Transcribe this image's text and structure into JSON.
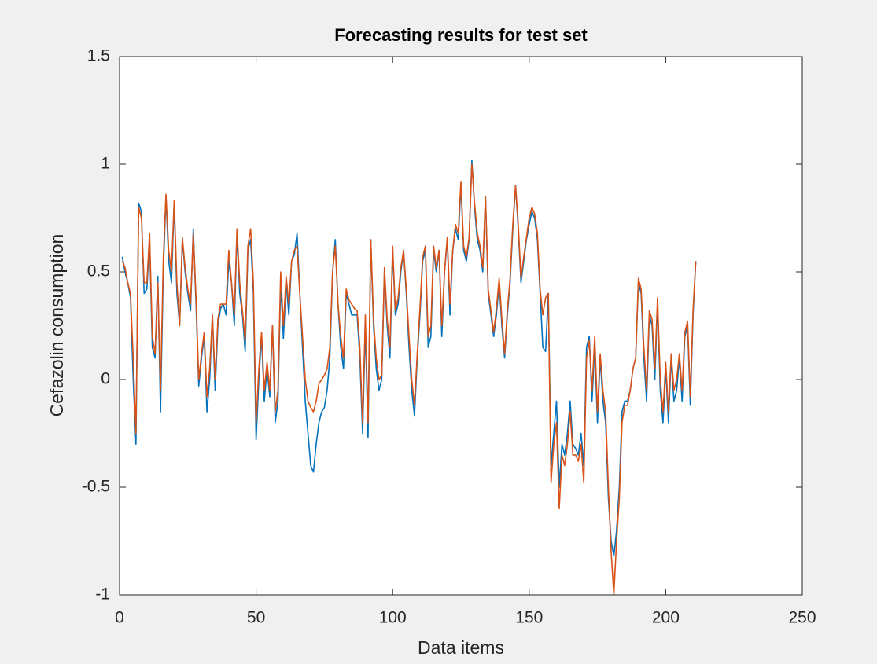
{
  "chart_data": {
    "type": "line",
    "title": "Forecasting results for test set",
    "x_label": "Data items",
    "y_label": "Cefazolin consumption",
    "x": [
      1,
      2,
      3,
      4,
      5,
      6,
      7,
      8,
      9,
      10,
      11,
      12,
      13,
      14,
      15,
      16,
      17,
      18,
      19,
      20,
      21,
      22,
      23,
      24,
      25,
      26,
      27,
      28,
      29,
      30,
      31,
      32,
      33,
      34,
      35,
      36,
      37,
      38,
      39,
      40,
      41,
      42,
      43,
      44,
      45,
      46,
      47,
      48,
      49,
      50,
      51,
      52,
      53,
      54,
      55,
      56,
      57,
      58,
      59,
      60,
      61,
      62,
      63,
      64,
      65,
      66,
      67,
      68,
      69,
      70,
      71,
      72,
      73,
      74,
      75,
      76,
      77,
      78,
      79,
      80,
      81,
      82,
      83,
      84,
      85,
      86,
      87,
      88,
      89,
      90,
      91,
      92,
      93,
      94,
      95,
      96,
      97,
      98,
      99,
      100,
      101,
      102,
      103,
      104,
      105,
      106,
      107,
      108,
      109,
      110,
      111,
      112,
      113,
      114,
      115,
      116,
      117,
      118,
      119,
      120,
      121,
      122,
      123,
      124,
      125,
      126,
      127,
      128,
      129,
      130,
      131,
      132,
      133,
      134,
      135,
      136,
      137,
      138,
      139,
      140,
      141,
      142,
      143,
      144,
      145,
      146,
      147,
      148,
      149,
      150,
      151,
      152,
      153,
      154,
      155,
      156,
      157,
      158,
      159,
      160,
      161,
      162,
      163,
      164,
      165,
      166,
      167,
      168,
      169,
      170,
      171,
      172,
      173,
      174,
      175,
      176,
      177,
      178,
      179,
      180,
      181,
      182,
      183,
      184,
      185,
      186,
      187,
      188,
      189,
      190,
      191,
      192,
      193,
      194,
      195,
      196,
      197,
      198,
      199,
      200,
      201,
      202,
      203,
      204,
      205,
      206,
      207,
      208,
      209,
      210,
      211
    ],
    "series": [
      {
        "color": "#0072bd",
        "values": [
          0.57,
          0.5,
          0.45,
          0.38,
          0.0,
          -0.3,
          0.82,
          0.78,
          0.4,
          0.42,
          0.65,
          0.15,
          0.1,
          0.48,
          -0.15,
          0.5,
          0.85,
          0.55,
          0.45,
          0.82,
          0.4,
          0.25,
          0.65,
          0.5,
          0.4,
          0.32,
          0.7,
          0.35,
          -0.03,
          0.1,
          0.2,
          -0.15,
          0.0,
          0.3,
          -0.05,
          0.25,
          0.33,
          0.35,
          0.3,
          0.55,
          0.45,
          0.25,
          0.68,
          0.4,
          0.3,
          0.13,
          0.6,
          0.65,
          0.4,
          -0.28,
          0.0,
          0.2,
          -0.1,
          0.05,
          -0.08,
          0.25,
          -0.2,
          -0.1,
          0.45,
          0.19,
          0.45,
          0.3,
          0.55,
          0.58,
          0.68,
          0.4,
          0.15,
          -0.1,
          -0.25,
          -0.4,
          -0.43,
          -0.3,
          -0.2,
          -0.15,
          -0.13,
          -0.05,
          0.1,
          0.5,
          0.65,
          0.35,
          0.15,
          0.05,
          0.4,
          0.35,
          0.3,
          0.3,
          0.3,
          0.1,
          -0.25,
          0.25,
          -0.27,
          0.65,
          0.25,
          0.05,
          -0.05,
          0.0,
          0.5,
          0.25,
          0.1,
          0.6,
          0.3,
          0.35,
          0.5,
          0.6,
          0.4,
          0.15,
          -0.05,
          -0.17,
          0.1,
          0.3,
          0.55,
          0.6,
          0.15,
          0.2,
          0.6,
          0.5,
          0.6,
          0.2,
          0.5,
          0.65,
          0.3,
          0.6,
          0.7,
          0.65,
          0.9,
          0.6,
          0.55,
          0.65,
          1.02,
          0.8,
          0.65,
          0.6,
          0.5,
          0.85,
          0.4,
          0.3,
          0.2,
          0.3,
          0.45,
          0.25,
          0.1,
          0.3,
          0.45,
          0.7,
          0.9,
          0.7,
          0.45,
          0.55,
          0.65,
          0.72,
          0.78,
          0.75,
          0.65,
          0.4,
          0.15,
          0.13,
          0.4,
          -0.4,
          -0.25,
          -0.1,
          -0.5,
          -0.3,
          -0.35,
          -0.25,
          -0.1,
          -0.3,
          -0.32,
          -0.35,
          -0.25,
          -0.4,
          0.15,
          0.2,
          -0.1,
          0.15,
          -0.2,
          0.1,
          -0.1,
          -0.2,
          -0.55,
          -0.75,
          -0.82,
          -0.7,
          -0.5,
          -0.15,
          -0.1,
          -0.1,
          -0.05,
          0.05,
          0.1,
          0.45,
          0.4,
          0.1,
          -0.1,
          0.3,
          0.25,
          0.0,
          0.35,
          -0.05,
          -0.2,
          0.05,
          -0.2,
          0.1,
          -0.1,
          -0.05,
          0.1,
          -0.1,
          0.2,
          0.25,
          -0.12,
          0.3,
          0.55
        ]
      },
      {
        "color": "#d95319",
        "values": [
          0.55,
          0.52,
          0.45,
          0.4,
          0.1,
          -0.25,
          0.8,
          0.75,
          0.45,
          0.45,
          0.68,
          0.2,
          0.12,
          0.45,
          -0.05,
          0.55,
          0.86,
          0.6,
          0.5,
          0.83,
          0.45,
          0.25,
          0.66,
          0.52,
          0.42,
          0.35,
          0.68,
          0.38,
          0.0,
          0.12,
          0.22,
          -0.08,
          0.05,
          0.3,
          0.0,
          0.28,
          0.35,
          0.35,
          0.35,
          0.6,
          0.45,
          0.3,
          0.7,
          0.45,
          0.32,
          0.18,
          0.62,
          0.7,
          0.45,
          -0.2,
          0.05,
          0.22,
          -0.05,
          0.08,
          -0.05,
          0.25,
          -0.15,
          -0.05,
          0.5,
          0.25,
          0.48,
          0.35,
          0.55,
          0.6,
          0.62,
          0.4,
          0.2,
          0.0,
          -0.1,
          -0.13,
          -0.15,
          -0.1,
          -0.02,
          0.0,
          0.02,
          0.05,
          0.15,
          0.5,
          0.62,
          0.35,
          0.2,
          0.1,
          0.42,
          0.37,
          0.35,
          0.33,
          0.32,
          0.15,
          -0.2,
          0.3,
          -0.2,
          0.65,
          0.28,
          0.1,
          0.0,
          0.02,
          0.52,
          0.28,
          0.15,
          0.62,
          0.32,
          0.38,
          0.52,
          0.6,
          0.42,
          0.2,
          0.0,
          -0.12,
          0.12,
          0.33,
          0.57,
          0.62,
          0.2,
          0.25,
          0.62,
          0.52,
          0.6,
          0.25,
          0.5,
          0.66,
          0.35,
          0.6,
          0.72,
          0.68,
          0.92,
          0.62,
          0.57,
          0.66,
          1.0,
          0.82,
          0.68,
          0.62,
          0.52,
          0.85,
          0.42,
          0.32,
          0.22,
          0.33,
          0.47,
          0.28,
          0.12,
          0.32,
          0.47,
          0.72,
          0.9,
          0.72,
          0.47,
          0.57,
          0.66,
          0.75,
          0.8,
          0.77,
          0.68,
          0.42,
          0.3,
          0.38,
          0.4,
          -0.48,
          -0.3,
          -0.2,
          -0.6,
          -0.35,
          -0.4,
          -0.3,
          -0.15,
          -0.35,
          -0.35,
          -0.38,
          -0.3,
          -0.48,
          0.1,
          0.18,
          -0.05,
          0.2,
          -0.15,
          0.12,
          -0.05,
          -0.15,
          -0.5,
          -0.8,
          -1.0,
          -0.75,
          -0.55,
          -0.2,
          -0.12,
          -0.12,
          -0.05,
          0.05,
          0.1,
          0.47,
          0.42,
          0.15,
          -0.05,
          0.32,
          0.28,
          0.05,
          0.38,
          0.0,
          -0.15,
          0.08,
          -0.15,
          0.12,
          -0.05,
          0.0,
          0.12,
          -0.05,
          0.22,
          0.27,
          -0.08,
          0.32,
          0.55
        ]
      }
    ],
    "xlim": [
      0,
      250
    ],
    "xticks": [
      0,
      50,
      100,
      150,
      200,
      250
    ],
    "ylim": [
      -1,
      1.5
    ],
    "yticks": [
      -1,
      -0.5,
      0,
      0.5,
      1,
      1.5
    ]
  }
}
